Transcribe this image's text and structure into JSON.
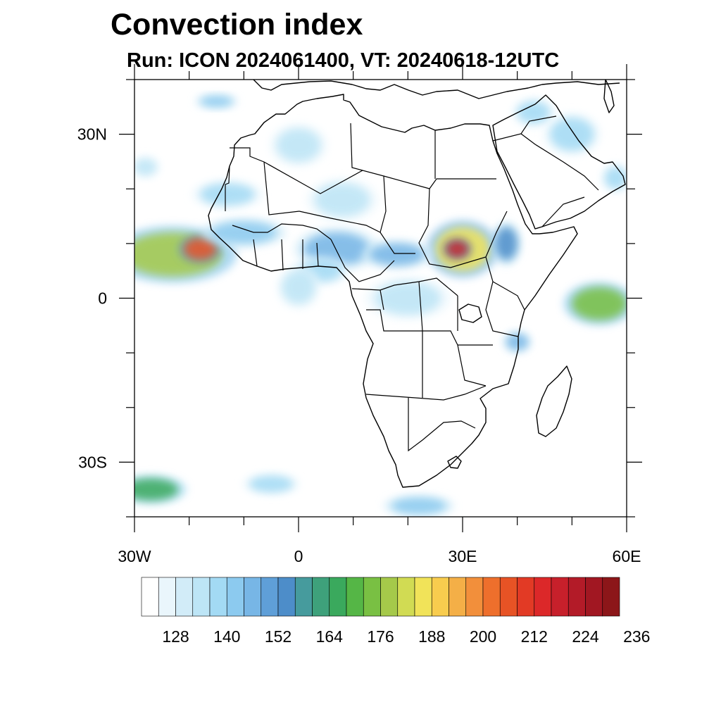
{
  "title": "Convection index",
  "subtitle": "Run: ICON 2024061400,  VT: 20240618-12UTC",
  "lon_ticks": [
    {
      "label": "30W",
      "value": -30
    },
    {
      "label": "0",
      "value": 0
    },
    {
      "label": "30E",
      "value": 30
    },
    {
      "label": "60E",
      "value": 60
    }
  ],
  "lat_ticks": [
    {
      "label": "30N",
      "value": 30
    },
    {
      "label": "0",
      "value": 0
    },
    {
      "label": "30S",
      "value": -30
    }
  ],
  "lon_range": [
    -30,
    60
  ],
  "lat_range": [
    -40,
    40
  ],
  "colorbar": {
    "colors": [
      "#ffffff",
      "#eaf6fc",
      "#d2ecf8",
      "#bde5f6",
      "#a3daf4",
      "#8ccaef",
      "#77b6e6",
      "#5f9fd8",
      "#4d8dc9",
      "#469b9d",
      "#3ea17b",
      "#3aa95d",
      "#55b646",
      "#79c043",
      "#a5c94a",
      "#d1db53",
      "#f1e359",
      "#f8cc4e",
      "#f4af47",
      "#f28f3b",
      "#ee6f2c",
      "#e75325",
      "#e23a25",
      "#dc2829",
      "#c7202b",
      "#b31b28",
      "#a11722",
      "#8c1619"
    ],
    "labels": [
      "128",
      "140",
      "152",
      "164",
      "176",
      "188",
      "200",
      "212",
      "224",
      "236"
    ],
    "label_positions": [
      2,
      5,
      8,
      11,
      14,
      17,
      20,
      23,
      26,
      29
    ]
  },
  "convection_blobs": [
    {
      "lon": -23,
      "lat": 8,
      "rlon": 9,
      "rlat": 4,
      "level": 14
    },
    {
      "lon": -18,
      "lat": 9,
      "rlon": 3,
      "rlat": 2,
      "level": 21
    },
    {
      "lon": -27,
      "lat": -35,
      "rlon": 5,
      "rlat": 2,
      "level": 11
    },
    {
      "lon": 30,
      "lat": 9,
      "rlon": 5,
      "rlat": 4,
      "level": 16
    },
    {
      "lon": 29,
      "lat": 9,
      "rlon": 2,
      "rlat": 1.5,
      "level": 24
    },
    {
      "lon": 55,
      "lat": -1,
      "rlon": 5,
      "rlat": 3,
      "level": 13
    },
    {
      "lon": 38,
      "lat": 10,
      "rlon": 2,
      "rlat": 3,
      "level": 8
    },
    {
      "lon": 7,
      "lat": 9,
      "rlon": 6,
      "rlat": 3,
      "level": 6
    },
    {
      "lon": 18,
      "lat": 8,
      "rlon": 5,
      "rlat": 2,
      "level": 6
    },
    {
      "lon": -10,
      "lat": 12,
      "rlon": 6,
      "rlat": 2,
      "level": 5
    },
    {
      "lon": 4,
      "lat": 5,
      "rlon": 4,
      "rlat": 2,
      "level": 4
    },
    {
      "lon": -13,
      "lat": 19,
      "rlon": 5,
      "rlat": 2,
      "level": 4
    },
    {
      "lon": 0,
      "lat": 28,
      "rlon": 4,
      "rlat": 3,
      "level": 3
    },
    {
      "lon": 8,
      "lat": 18,
      "rlon": 5,
      "rlat": 3,
      "level": 3
    },
    {
      "lon": 50,
      "lat": 30,
      "rlon": 4,
      "rlat": 3,
      "level": 4
    },
    {
      "lon": 43,
      "lat": 34,
      "rlon": 3,
      "rlat": 2,
      "level": 4
    },
    {
      "lon": -15,
      "lat": 36,
      "rlon": 3,
      "rlat": 1,
      "level": 5
    },
    {
      "lon": -5,
      "lat": -34,
      "rlon": 4,
      "rlat": 1.5,
      "level": 4
    },
    {
      "lon": 22,
      "lat": -38,
      "rlon": 5,
      "rlat": 1.5,
      "level": 5
    },
    {
      "lon": 40,
      "lat": -8,
      "rlon": 2,
      "rlat": 1.5,
      "level": 6
    },
    {
      "lon": -28,
      "lat": 24,
      "rlon": 2,
      "rlat": 1.5,
      "level": 3
    },
    {
      "lon": 20,
      "lat": 0,
      "rlon": 6,
      "rlat": 3,
      "level": 3
    },
    {
      "lon": 0,
      "lat": 2,
      "rlon": 3,
      "rlat": 3,
      "level": 3
    },
    {
      "lon": 58,
      "lat": 22,
      "rlon": 2,
      "rlat": 2,
      "level": 4
    }
  ]
}
